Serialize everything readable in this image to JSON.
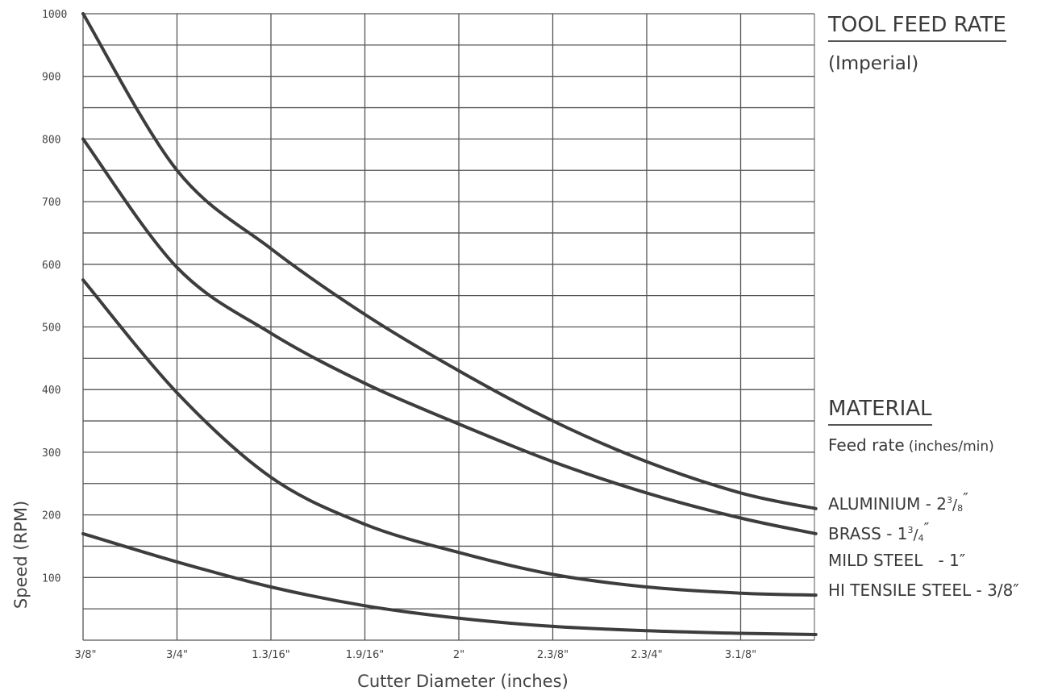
{
  "chart_data": {
    "type": "line",
    "xlabel": "Cutter Diameter (inches)",
    "ylabel": "Speed (RPM)",
    "categories": [
      "3/8\"",
      "3/4\"",
      "1.3/16\"",
      "1.9/16\"",
      "2\"",
      "2.3/8\"",
      "2.3/4\"",
      "3.1/8\""
    ],
    "y_ticks": [
      "100",
      "200",
      "300",
      "400",
      "500",
      "600",
      "700",
      "800",
      "900",
      "1000"
    ],
    "ylim": [
      0,
      1000
    ],
    "grid": true,
    "series": [
      {
        "name": "ALUMINIUM - 2 3/8\"",
        "x": [
          0,
          1,
          2,
          3,
          4,
          5,
          6,
          7,
          7.8
        ],
        "y": [
          1000,
          750,
          625,
          520,
          430,
          350,
          285,
          235,
          210
        ]
      },
      {
        "name": "BRASS - 1 3/4\"",
        "x": [
          0,
          1,
          2,
          3,
          4,
          5,
          6,
          7,
          7.8
        ],
        "y": [
          800,
          595,
          490,
          410,
          345,
          285,
          235,
          195,
          170
        ]
      },
      {
        "name": "MILD STEEL - 1\"",
        "x": [
          0,
          1,
          2,
          3,
          4,
          5,
          6,
          7,
          7.8
        ],
        "y": [
          575,
          395,
          260,
          185,
          140,
          105,
          85,
          75,
          72
        ]
      },
      {
        "name": "HI TENSILE STEEL - 3/8\"",
        "x": [
          0,
          1,
          2,
          3,
          4,
          5,
          6,
          7,
          7.8
        ],
        "y": [
          170,
          125,
          85,
          55,
          35,
          22,
          15,
          11,
          9
        ]
      }
    ]
  },
  "side_panel": {
    "title": "TOOL FEED RATE",
    "subtitle": "(Imperial)",
    "material_heading": "MATERIAL",
    "feed_rate_label": "Feed rate",
    "feed_rate_units": "(inches/min)",
    "legend": [
      {
        "name": "ALUMINIUM - 2",
        "sup": "3",
        "sub": "8",
        "quote": "″"
      },
      {
        "name": "BRASS - 1",
        "sup": "3",
        "sub": "4",
        "quote": "″"
      },
      {
        "name": "MILD STEEL   - 1″"
      },
      {
        "name": "HI TENSILE STEEL - 3/8″"
      }
    ]
  },
  "colors": {
    "line": "#3d3d3d",
    "grid": "#555555",
    "text": "#3a3a3a"
  }
}
